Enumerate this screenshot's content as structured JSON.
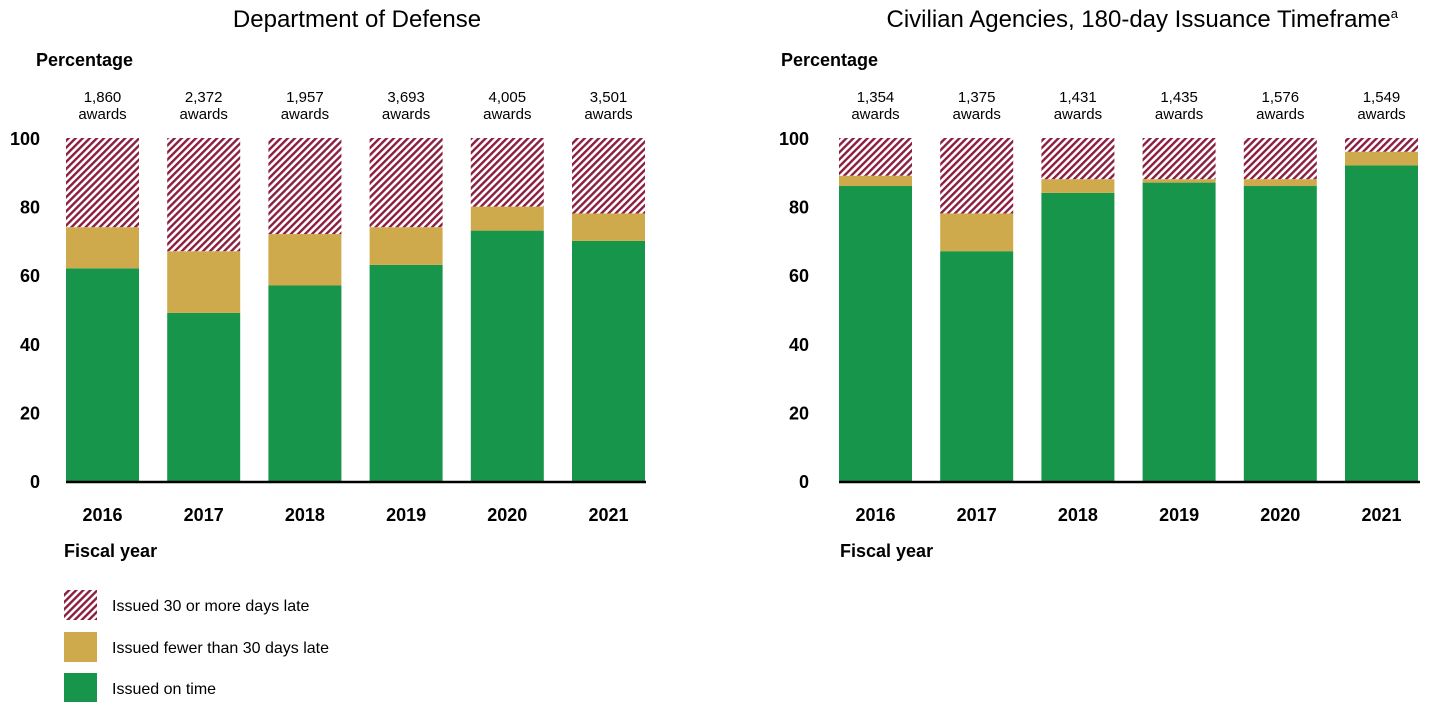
{
  "colors": {
    "late30": "#8b1e3f",
    "under30": "#cfaa4c",
    "ontime": "#16954b"
  },
  "legend": [
    {
      "key": "late30",
      "label": "Issued 30 or more days late",
      "color": "#8b1e3f"
    },
    {
      "key": "under30",
      "label": "Issued fewer than 30 days late",
      "color": "#cfaa4c"
    },
    {
      "key": "ontime",
      "label": "Issued on time",
      "color": "#16954b"
    }
  ],
  "chart_data": [
    {
      "type": "bar",
      "stacked": true,
      "title": "Department of Defense",
      "ylabel": "Percentage",
      "xlabel": "Fiscal year",
      "ylim": [
        0,
        100
      ],
      "yticks": [
        "0",
        "20",
        "40",
        "60",
        "80",
        "100"
      ],
      "categories": [
        "2016",
        "2017",
        "2018",
        "2019",
        "2020",
        "2021"
      ],
      "award_counts": [
        "1,860",
        "2,372",
        "1,957",
        "3,693",
        "4,005",
        "3,501"
      ],
      "award_unit": "awards",
      "series": [
        {
          "name": "Issued on time",
          "key": "ontime",
          "values": [
            62,
            49,
            57,
            63,
            73,
            70
          ]
        },
        {
          "name": "Issued fewer than 30 days late",
          "key": "under30",
          "values": [
            12,
            18,
            15,
            11,
            7,
            8
          ]
        },
        {
          "name": "Issued 30 or more days late",
          "key": "late30",
          "values": [
            26,
            33,
            28,
            26,
            20,
            22
          ]
        }
      ]
    },
    {
      "type": "bar",
      "stacked": true,
      "title": "Civilian Agencies, 180-day Issuance Timeframe",
      "title_footnote": "a",
      "ylabel": "Percentage",
      "xlabel": "Fiscal year",
      "ylim": [
        0,
        100
      ],
      "yticks": [
        "0",
        "20",
        "40",
        "60",
        "80",
        "100"
      ],
      "categories": [
        "2016",
        "2017",
        "2018",
        "2019",
        "2020",
        "2021"
      ],
      "award_counts": [
        "1,354",
        "1,375",
        "1,431",
        "1,435",
        "1,576",
        "1,549"
      ],
      "award_unit": "awards",
      "series": [
        {
          "name": "Issued on time",
          "key": "ontime",
          "values": [
            86,
            67,
            84,
            87,
            86,
            92
          ]
        },
        {
          "name": "Issued fewer than 30 days late",
          "key": "under30",
          "values": [
            3,
            11,
            4,
            1,
            2,
            4
          ]
        },
        {
          "name": "Issued 30 or more days late",
          "key": "late30",
          "values": [
            11,
            22,
            12,
            12,
            12,
            4
          ]
        }
      ]
    }
  ]
}
